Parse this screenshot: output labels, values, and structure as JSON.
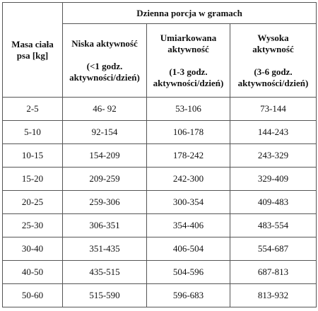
{
  "header": {
    "group_title": "Dzienna porcja w gramach",
    "row_label": "Masa ciała psa  [kg]",
    "columns": [
      {
        "name": "Niska aktywność",
        "note": "(<1 godz. aktywności/dzień)"
      },
      {
        "name": "Umiarkowana aktywność",
        "note": "(1-3 godz. aktywności/dzień)"
      },
      {
        "name": "Wysoka aktywność",
        "note": "(3-6 godz. aktywności/dzień)"
      }
    ]
  },
  "rows": [
    [
      "2-5",
      "46- 92",
      "53-106",
      "73-144"
    ],
    [
      "5-10",
      "92-154",
      "106-178",
      "144-243"
    ],
    [
      "10-15",
      "154-209",
      "178-242",
      "243-329"
    ],
    [
      "15-20",
      "209-259",
      "242-300",
      "329-409"
    ],
    [
      "20-25",
      "259-306",
      "300-354",
      "409-483"
    ],
    [
      "25-30",
      "306-351",
      "354-406",
      "483-554"
    ],
    [
      "30-40",
      "351-435",
      "406-504",
      "554-687"
    ],
    [
      "40-50",
      "435-515",
      "504-596",
      "687-813"
    ],
    [
      "50-60",
      "515-590",
      "596-683",
      "813-932"
    ]
  ]
}
